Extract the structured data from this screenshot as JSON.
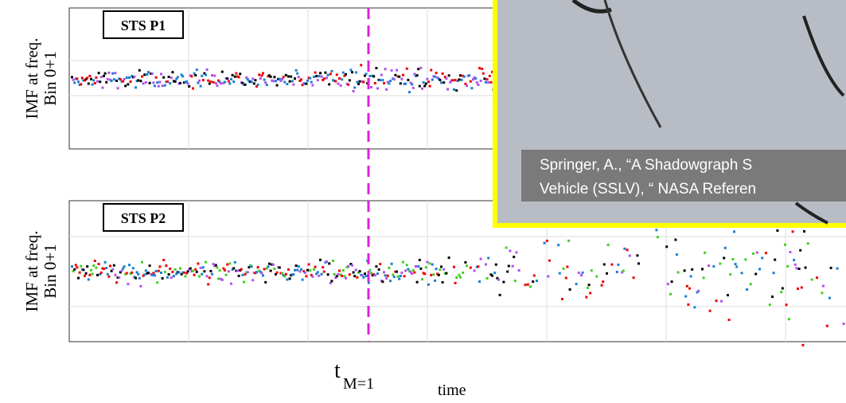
{
  "panels": [
    {
      "label": "STS P1",
      "ylabel": [
        "IMF at freq.",
        "Bin 0+1"
      ]
    },
    {
      "label": "STS P2",
      "ylabel": [
        "IMF at freq.",
        "Bin 0+1"
      ]
    }
  ],
  "marker_label": {
    "main": "t",
    "sub": "M=1"
  },
  "xlabel": "time",
  "overlay": {
    "caption": [
      "Springer, A., “A Shadowgraph S",
      "Vehicle (SSLV), “ NASA Referen"
    ]
  }
}
